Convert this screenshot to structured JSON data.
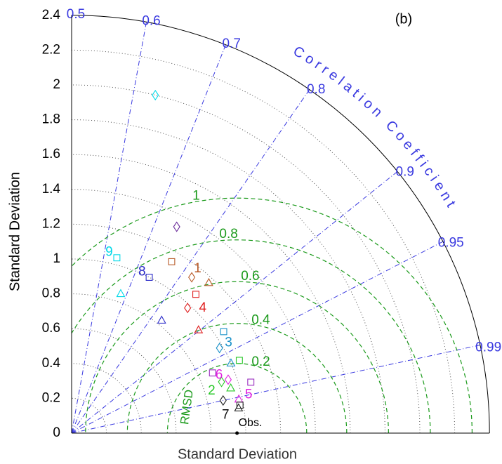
{
  "chart_data": {
    "type": "taylor",
    "title": "(b)",
    "xlabel": "Standard Deviation",
    "ylabel": "Standard Deviation",
    "corr_label": "Correlation Coefficient",
    "rmsd_label": "RMSD",
    "ylim": [
      0,
      2.4
    ],
    "yticks": [
      0,
      0.2,
      0.4,
      0.6,
      0.8,
      1,
      1.2,
      1.4,
      1.6,
      1.8,
      2,
      2.2,
      2.4
    ],
    "corr_lim": [
      0.5,
      1
    ],
    "corr_ticks": [
      0.5,
      0.6,
      0.7,
      0.8,
      0.9,
      0.95,
      0.99
    ],
    "corr_color": "#3a3ae0",
    "rmsd_color": "#1a9a1a",
    "rmsd_ticks": [
      {
        "value": 0.4,
        "label": "0.2"
      },
      {
        "value": 0.63,
        "label": "0.4"
      },
      {
        "value": 0.87,
        "label": "0.6"
      },
      {
        "value": 1.11,
        "label": "0.8"
      },
      {
        "value": 1.35,
        "label": "1"
      }
    ],
    "obs": {
      "label": "Obs.",
      "std": 0.95,
      "corr": 1
    },
    "points": [
      {
        "std": 2.0,
        "corr": 0.633,
        "marker": "diamond",
        "color": "#00d8e8"
      },
      {
        "std": 1.04,
        "corr": 0.638,
        "marker": "square",
        "color": "#00d8e8"
      },
      {
        "std": 0.85,
        "corr": 0.681,
        "marker": "triangle",
        "color": "#00d8e8"
      },
      {
        "std": 1.0,
        "corr": 0.739,
        "marker": "square",
        "color": "#2828c8"
      },
      {
        "std": 0.83,
        "corr": 0.826,
        "marker": "triangle",
        "color": "#2828c8"
      },
      {
        "std": 1.33,
        "corr": 0.743,
        "marker": "diamond",
        "color": "#6a2a9a"
      },
      {
        "std": 1.14,
        "corr": 0.768,
        "marker": "square",
        "color": "#b85a28"
      },
      {
        "std": 1.13,
        "corr": 0.82,
        "marker": "diamond",
        "color": "#b85a28"
      },
      {
        "std": 1.17,
        "corr": 0.85,
        "marker": "triangle",
        "color": "#b85a28"
      },
      {
        "std": 1.07,
        "corr": 0.847,
        "marker": "square",
        "color": "#e02020"
      },
      {
        "std": 0.98,
        "corr": 0.853,
        "marker": "diamond",
        "color": "#e02020"
      },
      {
        "std": 0.94,
        "corr": 0.898,
        "marker": "triangle",
        "color": "#e02020"
      },
      {
        "std": 1.05,
        "corr": 0.924,
        "marker": "square",
        "color": "#1890c8"
      },
      {
        "std": 0.98,
        "corr": 0.94,
        "marker": "diamond",
        "color": "#1890c8"
      },
      {
        "std": 1.0,
        "corr": 0.962,
        "marker": "triangle",
        "color": "#1890c8"
      },
      {
        "std": 1.05,
        "corr": 0.963,
        "marker": "square",
        "color": "#28c828"
      },
      {
        "std": 0.88,
        "corr": 0.964,
        "marker": "square",
        "color": "#9a30c0"
      },
      {
        "std": 0.95,
        "corr": 0.976,
        "marker": "diamond",
        "color": "#e020e0"
      },
      {
        "std": 1.07,
        "corr": 0.983,
        "marker": "square",
        "color": "#9a30c0"
      },
      {
        "std": 0.91,
        "corr": 0.976,
        "marker": "diamond",
        "color": "#28c828"
      },
      {
        "std": 0.95,
        "corr": 0.983,
        "marker": "triangle",
        "color": "#28c828"
      },
      {
        "std": 0.98,
        "corr": 0.991,
        "marker": "triangle",
        "color": "#e020e0"
      },
      {
        "std": 0.89,
        "corr": 0.99,
        "marker": "diamond",
        "color": "#222222"
      },
      {
        "std": 0.98,
        "corr": 0.994,
        "marker": "square",
        "color": "#222222"
      },
      {
        "std": 0.97,
        "corr": 0.995,
        "marker": "triangle",
        "color": "#222222"
      }
    ],
    "annotations": [
      {
        "text": "9",
        "std": 1.06,
        "corr": 0.613,
        "color": "#00d8e8"
      },
      {
        "text": "8",
        "std": 1.01,
        "corr": 0.716,
        "color": "#2828c8"
      },
      {
        "text": "1",
        "std": 1.19,
        "corr": 0.819,
        "color": "#b85a28"
      },
      {
        "text": "4",
        "std": 1.04,
        "corr": 0.874,
        "color": "#e02020"
      },
      {
        "text": "3",
        "std": 1.04,
        "corr": 0.94,
        "color": "#1890c8"
      },
      {
        "text": "6",
        "std": 0.91,
        "corr": 0.969,
        "color": "#e020e0"
      },
      {
        "text": "5",
        "std": 1.04,
        "corr": 0.99,
        "color": "#e020e0"
      },
      {
        "text": "2",
        "std": 0.84,
        "corr": 0.981,
        "color": "#28c828"
      },
      {
        "text": "7",
        "std": 0.89,
        "corr": 0.997,
        "color": "#111111"
      }
    ]
  }
}
